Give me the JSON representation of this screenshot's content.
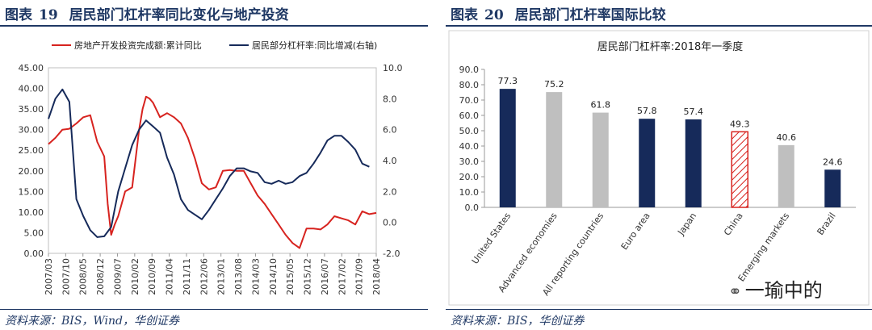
{
  "left_panel": {
    "label": "图表",
    "number": "19",
    "title": "居民部门杠杆率同比变化与地产投资",
    "source": "资料来源：BIS，Wind，华创证券"
  },
  "right_panel": {
    "label": "图表",
    "number": "20",
    "title": "居民部门杠杆率国际比较",
    "source": "资料来源：BIS，华创证券"
  },
  "watermark": {
    "icon": "wechat-icon",
    "text": "一瑜中的"
  },
  "colors": {
    "red": "#d7231f",
    "navy": "#162a5a",
    "gray": "#bfbfbf",
    "rule": "#1f3864"
  },
  "chart_data": [
    {
      "type": "line",
      "title": "",
      "legend": [
        "房地产开发投资完成额:累计同比",
        "居民部分杠杆率:同比增减(右轴)"
      ],
      "x_ticks": [
        "2007/03",
        "2007/10",
        "2008/05",
        "2008/12",
        "2009/07",
        "2010/02",
        "2010/09",
        "2011/04",
        "2011/11",
        "2012/06",
        "2013/01",
        "2013/08",
        "2014/03",
        "2014/10",
        "2015/05",
        "2015/12",
        "2016/07",
        "2017/02",
        "2017/09",
        "2018/04"
      ],
      "y_left_ticks": [
        "0.00",
        "5.00",
        "10.00",
        "15.00",
        "20.00",
        "25.00",
        "30.00",
        "35.00",
        "40.00",
        "45.00"
      ],
      "y_right_ticks": [
        "-2.0",
        "0.0",
        "2.0",
        "4.0",
        "6.0",
        "8.0",
        "10.0"
      ],
      "ylim_left": [
        0,
        45
      ],
      "ylim_right": [
        -2,
        10
      ],
      "series": [
        {
          "name": "房地产开发投资完成额:累计同比",
          "axis": "left",
          "color": "#d7231f",
          "points": [
            [
              0,
              26.5
            ],
            [
              1,
              28
            ],
            [
              2,
              30
            ],
            [
              3,
              30.2
            ],
            [
              4,
              31.5
            ],
            [
              5,
              33
            ],
            [
              6,
              33.5
            ],
            [
              7,
              27
            ],
            [
              8,
              23.5
            ],
            [
              8.5,
              12
            ],
            [
              9,
              4.5
            ],
            [
              9.5,
              7
            ],
            [
              10,
              9
            ],
            [
              11,
              15
            ],
            [
              12,
              16
            ],
            [
              13,
              30
            ],
            [
              13.5,
              35
            ],
            [
              14,
              38
            ],
            [
              14.5,
              37.5
            ],
            [
              15,
              36.5
            ],
            [
              16,
              33
            ],
            [
              17,
              34
            ],
            [
              18,
              33
            ],
            [
              19,
              31.5
            ],
            [
              20,
              28
            ],
            [
              21,
              23
            ],
            [
              22,
              17
            ],
            [
              23,
              15.5
            ],
            [
              24,
              16
            ],
            [
              25,
              20
            ],
            [
              26,
              20.2
            ],
            [
              27,
              20
            ],
            [
              28,
              20
            ],
            [
              29,
              17
            ],
            [
              30,
              14
            ],
            [
              31,
              12
            ],
            [
              32,
              9.5
            ],
            [
              33,
              7
            ],
            [
              34,
              4.5
            ],
            [
              35,
              2.5
            ],
            [
              36,
              1.3
            ],
            [
              37,
              6
            ],
            [
              38,
              6
            ],
            [
              39,
              5.8
            ],
            [
              40,
              7
            ],
            [
              41,
              9
            ],
            [
              42,
              8.5
            ],
            [
              43,
              8
            ],
            [
              44,
              7
            ],
            [
              45,
              10.2
            ],
            [
              46,
              9.5
            ],
            [
              47,
              9.8
            ]
          ]
        },
        {
          "name": "居民部分杠杆率:同比增减(右轴)",
          "axis": "right",
          "color": "#162a5a",
          "points": [
            [
              0,
              6.7
            ],
            [
              1,
              8
            ],
            [
              2,
              8.6
            ],
            [
              3,
              7.8
            ],
            [
              4,
              1.5
            ],
            [
              5,
              0.4
            ],
            [
              6,
              -0.5
            ],
            [
              7,
              -0.95
            ],
            [
              8,
              -0.9
            ],
            [
              9,
              -0.3
            ],
            [
              10,
              2
            ],
            [
              11,
              3.5
            ],
            [
              12,
              5
            ],
            [
              13,
              6
            ],
            [
              14,
              6.6
            ],
            [
              15,
              6.2
            ],
            [
              16,
              5.8
            ],
            [
              17,
              4.2
            ],
            [
              18,
              3.1
            ],
            [
              19,
              1.5
            ],
            [
              20,
              0.8
            ],
            [
              21,
              0.5
            ],
            [
              22,
              0.2
            ],
            [
              23,
              0.8
            ],
            [
              24,
              1.5
            ],
            [
              25,
              2.2
            ],
            [
              26,
              3
            ],
            [
              27,
              3.5
            ],
            [
              28,
              3.5
            ],
            [
              29,
              3.3
            ],
            [
              30,
              3.2
            ],
            [
              31,
              2.6
            ],
            [
              32,
              2.5
            ],
            [
              33,
              2.7
            ],
            [
              34,
              2.5
            ],
            [
              35,
              2.6
            ],
            [
              36,
              3
            ],
            [
              37,
              3.2
            ],
            [
              38,
              3.8
            ],
            [
              39,
              4.5
            ],
            [
              40,
              5.3
            ],
            [
              41,
              5.6
            ],
            [
              42,
              5.6
            ],
            [
              43,
              5.2
            ],
            [
              44,
              4.7
            ],
            [
              45,
              3.8
            ],
            [
              46,
              3.6
            ]
          ]
        }
      ]
    },
    {
      "type": "bar",
      "title": "居民部门杠杆率:2018年一季度",
      "categories": [
        "United States",
        "Advanced economies",
        "All reporting countries",
        "Euro area",
        "Japan",
        "China",
        "Emerging markets",
        "Brazil"
      ],
      "values": [
        77.3,
        75.2,
        61.8,
        57.8,
        57.4,
        49.3,
        40.6,
        24.6
      ],
      "value_labels": [
        "77.3",
        "75.2",
        "61.8",
        "57.8",
        "57.4",
        "49.3",
        "40.6",
        "24.6"
      ],
      "bar_styles": [
        "navy",
        "gray",
        "gray",
        "navy",
        "navy",
        "hatched",
        "gray",
        "navy"
      ],
      "y_ticks": [
        "0.0",
        "10.0",
        "20.0",
        "30.0",
        "40.0",
        "50.0",
        "60.0",
        "70.0",
        "80.0",
        "90.0"
      ],
      "ylim": [
        0,
        90
      ]
    }
  ]
}
